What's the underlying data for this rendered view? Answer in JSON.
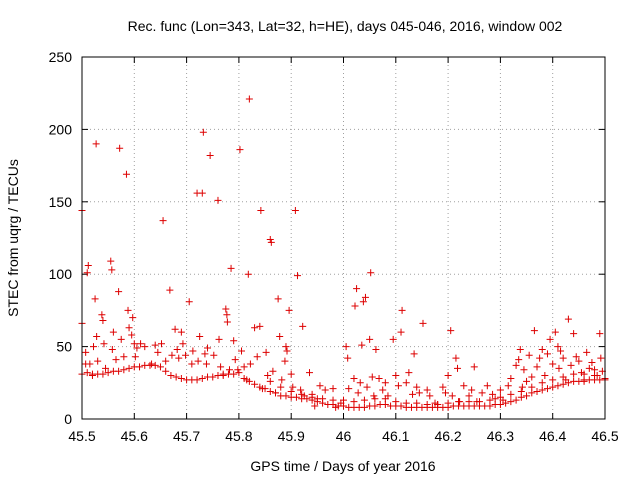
{
  "chart_data": {
    "type": "scatter",
    "title": "Rec. func (Lon=343, Lat=32, h=HE), days 045-046, 2016, window 002",
    "xlabel": "GPS time / Days of year 2016",
    "ylabel": "STEC from uqrg / TECUs",
    "xlim": [
      45.5,
      46.5
    ],
    "ylim": [
      0,
      250
    ],
    "x_ticks": [
      45.5,
      45.6,
      45.7,
      45.8,
      45.9,
      46,
      46.1,
      46.2,
      46.3,
      46.4,
      46.5
    ],
    "x_tick_labels": [
      "45.5",
      "45.6",
      "45.7",
      "45.8",
      "45.9",
      "46",
      "46.1",
      "46.2",
      "46.3",
      "46.4",
      "46.5"
    ],
    "y_ticks": [
      0,
      50,
      100,
      150,
      200,
      250
    ],
    "y_tick_labels": [
      "0",
      "50",
      "100",
      "150",
      "200",
      "250"
    ],
    "grid": true,
    "legend": "none",
    "marker": "plus",
    "color": "#dd0000",
    "points": [
      [
        45.5,
        144
      ],
      [
        45.5,
        66
      ],
      [
        45.507,
        46
      ],
      [
        45.507,
        38
      ],
      [
        45.51,
        101
      ],
      [
        45.512,
        106
      ],
      [
        45.515,
        38
      ],
      [
        45.52,
        31
      ],
      [
        45.522,
        50
      ],
      [
        45.525,
        83
      ],
      [
        45.527,
        190
      ],
      [
        45.528,
        57
      ],
      [
        45.53,
        40
      ],
      [
        45.538,
        72
      ],
      [
        45.54,
        68
      ],
      [
        45.542,
        52
      ],
      [
        45.545,
        35
      ],
      [
        45.555,
        109
      ],
      [
        45.557,
        103
      ],
      [
        45.558,
        48
      ],
      [
        45.56,
        60
      ],
      [
        45.565,
        41
      ],
      [
        45.57,
        88
      ],
      [
        45.572,
        187
      ],
      [
        45.575,
        55
      ],
      [
        45.58,
        43
      ],
      [
        45.585,
        169
      ],
      [
        45.588,
        75
      ],
      [
        45.59,
        63
      ],
      [
        45.595,
        58
      ],
      [
        45.597,
        70
      ],
      [
        45.6,
        52
      ],
      [
        45.602,
        43
      ],
      [
        45.605,
        49
      ],
      [
        45.612,
        52
      ],
      [
        45.62,
        50
      ],
      [
        45.633,
        38
      ],
      [
        45.64,
        51
      ],
      [
        45.645,
        46
      ],
      [
        45.652,
        52
      ],
      [
        45.655,
        137
      ],
      [
        45.66,
        40
      ],
      [
        45.668,
        89
      ],
      [
        45.672,
        44
      ],
      [
        45.678,
        62
      ],
      [
        45.682,
        48
      ],
      [
        45.685,
        42
      ],
      [
        45.69,
        60
      ],
      [
        45.693,
        52
      ],
      [
        45.698,
        44
      ],
      [
        45.705,
        81
      ],
      [
        45.71,
        38
      ],
      [
        45.712,
        47
      ],
      [
        45.72,
        156
      ],
      [
        45.722,
        40
      ],
      [
        45.725,
        57
      ],
      [
        45.73,
        156
      ],
      [
        45.732,
        198
      ],
      [
        45.735,
        45
      ],
      [
        45.738,
        38
      ],
      [
        45.74,
        49
      ],
      [
        45.745,
        182
      ],
      [
        45.752,
        44
      ],
      [
        45.76,
        151
      ],
      [
        45.762,
        55
      ],
      [
        45.765,
        36
      ],
      [
        45.77,
        31
      ],
      [
        45.775,
        76
      ],
      [
        45.777,
        72
      ],
      [
        45.778,
        67
      ],
      [
        45.782,
        34
      ],
      [
        45.785,
        104
      ],
      [
        45.79,
        54
      ],
      [
        45.793,
        41
      ],
      [
        45.798,
        34
      ],
      [
        45.802,
        186
      ],
      [
        45.805,
        47
      ],
      [
        45.81,
        36
      ],
      [
        45.815,
        27
      ],
      [
        45.818,
        100
      ],
      [
        45.82,
        221
      ],
      [
        45.822,
        38
      ],
      [
        45.83,
        63
      ],
      [
        45.835,
        43
      ],
      [
        45.84,
        64
      ],
      [
        45.842,
        144
      ],
      [
        45.845,
        21
      ],
      [
        45.852,
        46
      ],
      [
        45.855,
        30
      ],
      [
        45.86,
        124
      ],
      [
        45.862,
        122
      ],
      [
        45.865,
        33
      ],
      [
        45.87,
        18
      ],
      [
        45.875,
        83
      ],
      [
        45.878,
        57
      ],
      [
        45.882,
        27
      ],
      [
        45.888,
        40
      ],
      [
        45.89,
        50
      ],
      [
        45.892,
        47
      ],
      [
        45.896,
        75
      ],
      [
        45.9,
        31
      ],
      [
        45.903,
        22
      ],
      [
        45.908,
        144
      ],
      [
        45.912,
        99
      ],
      [
        45.918,
        20
      ],
      [
        45.922,
        64
      ],
      [
        45.925,
        16
      ],
      [
        45.935,
        32
      ],
      [
        45.94,
        17
      ],
      [
        45.945,
        9
      ],
      [
        45.95,
        14
      ],
      [
        45.955,
        23
      ],
      [
        45.965,
        20
      ],
      [
        45.98,
        21
      ],
      [
        45.985,
        8
      ],
      [
        45.995,
        11
      ],
      [
        46.005,
        50
      ],
      [
        46.008,
        42
      ],
      [
        46.01,
        21
      ],
      [
        46.02,
        28
      ],
      [
        46.022,
        78
      ],
      [
        46.025,
        90
      ],
      [
        46.028,
        18
      ],
      [
        46.032,
        25
      ],
      [
        46.035,
        51
      ],
      [
        46.038,
        81
      ],
      [
        46.042,
        84
      ],
      [
        46.045,
        22
      ],
      [
        46.05,
        55
      ],
      [
        46.052,
        101
      ],
      [
        46.055,
        29
      ],
      [
        46.058,
        16
      ],
      [
        46.062,
        48
      ],
      [
        46.068,
        28
      ],
      [
        46.075,
        20
      ],
      [
        46.08,
        25
      ],
      [
        46.085,
        16
      ],
      [
        46.095,
        55
      ],
      [
        46.1,
        30
      ],
      [
        46.105,
        23
      ],
      [
        46.11,
        60
      ],
      [
        46.112,
        75
      ],
      [
        46.12,
        25
      ],
      [
        46.125,
        32
      ],
      [
        46.132,
        17
      ],
      [
        46.135,
        45
      ],
      [
        46.14,
        22
      ],
      [
        46.145,
        18
      ],
      [
        46.152,
        66
      ],
      [
        46.16,
        20
      ],
      [
        46.165,
        16
      ],
      [
        46.175,
        11
      ],
      [
        46.18,
        10
      ],
      [
        46.19,
        22
      ],
      [
        46.195,
        18
      ],
      [
        46.2,
        30
      ],
      [
        46.205,
        61
      ],
      [
        46.208,
        16
      ],
      [
        46.215,
        42
      ],
      [
        46.218,
        35
      ],
      [
        46.222,
        12
      ],
      [
        46.23,
        23
      ],
      [
        46.24,
        16
      ],
      [
        46.245,
        20
      ],
      [
        46.25,
        36
      ],
      [
        46.255,
        12
      ],
      [
        46.265,
        18
      ],
      [
        46.275,
        23
      ],
      [
        46.285,
        17
      ],
      [
        46.29,
        14
      ],
      [
        46.3,
        20
      ],
      [
        46.305,
        13
      ],
      [
        46.315,
        23
      ],
      [
        46.32,
        28
      ],
      [
        46.33,
        37
      ],
      [
        46.335,
        41
      ],
      [
        46.338,
        48
      ],
      [
        46.342,
        22
      ],
      [
        46.345,
        34
      ],
      [
        46.35,
        26
      ],
      [
        46.355,
        44
      ],
      [
        46.36,
        29
      ],
      [
        46.365,
        61
      ],
      [
        46.37,
        36
      ],
      [
        46.375,
        42
      ],
      [
        46.38,
        48
      ],
      [
        46.385,
        30
      ],
      [
        46.39,
        45
      ],
      [
        46.395,
        55
      ],
      [
        46.4,
        38
      ],
      [
        46.405,
        60
      ],
      [
        46.41,
        50
      ],
      [
        46.412,
        35
      ],
      [
        46.415,
        47
      ],
      [
        46.42,
        42
      ],
      [
        46.425,
        27
      ],
      [
        46.43,
        69
      ],
      [
        46.435,
        37
      ],
      [
        46.44,
        59
      ],
      [
        46.445,
        43
      ],
      [
        46.45,
        40
      ],
      [
        46.455,
        32
      ],
      [
        46.46,
        26
      ],
      [
        46.465,
        46
      ],
      [
        46.47,
        35
      ],
      [
        46.475,
        39
      ],
      [
        46.48,
        34
      ],
      [
        46.485,
        30
      ],
      [
        46.49,
        59
      ],
      [
        46.492,
        42
      ],
      [
        46.495,
        33
      ],
      [
        46.5,
        28
      ],
      [
        45.5,
        31
      ],
      [
        45.51,
        32
      ],
      [
        45.52,
        30
      ],
      [
        45.53,
        31
      ],
      [
        45.54,
        31
      ],
      [
        45.55,
        32
      ],
      [
        45.56,
        33
      ],
      [
        45.57,
        33
      ],
      [
        45.58,
        34
      ],
      [
        45.59,
        35
      ],
      [
        45.6,
        36
      ],
      [
        45.61,
        36
      ],
      [
        45.62,
        37
      ],
      [
        45.63,
        37
      ],
      [
        45.64,
        37
      ],
      [
        45.65,
        36
      ],
      [
        45.66,
        33
      ],
      [
        45.67,
        30
      ],
      [
        45.68,
        29
      ],
      [
        45.69,
        28
      ],
      [
        45.7,
        27
      ],
      [
        45.71,
        27
      ],
      [
        45.72,
        27
      ],
      [
        45.73,
        28
      ],
      [
        45.74,
        29
      ],
      [
        45.75,
        29
      ],
      [
        45.76,
        30
      ],
      [
        45.77,
        30
      ],
      [
        45.78,
        31
      ],
      [
        45.79,
        31
      ],
      [
        45.8,
        32
      ],
      [
        45.81,
        28
      ],
      [
        45.82,
        26
      ],
      [
        45.83,
        24
      ],
      [
        45.84,
        22
      ],
      [
        45.85,
        21
      ],
      [
        45.86,
        19
      ],
      [
        45.87,
        18
      ],
      [
        45.88,
        16
      ],
      [
        45.89,
        16
      ],
      [
        45.9,
        15
      ],
      [
        45.91,
        15
      ],
      [
        45.92,
        14
      ],
      [
        45.93,
        14
      ],
      [
        45.94,
        13
      ],
      [
        45.95,
        12
      ],
      [
        45.96,
        11
      ],
      [
        45.97,
        10
      ],
      [
        45.98,
        10
      ],
      [
        45.99,
        9
      ],
      [
        46.0,
        9
      ],
      [
        46.01,
        8
      ],
      [
        46.02,
        8
      ],
      [
        46.03,
        8
      ],
      [
        46.04,
        8
      ],
      [
        46.05,
        9
      ],
      [
        46.06,
        9
      ],
      [
        46.07,
        10
      ],
      [
        46.08,
        10
      ],
      [
        46.09,
        9
      ],
      [
        46.1,
        9
      ],
      [
        46.11,
        9
      ],
      [
        46.12,
        8
      ],
      [
        46.13,
        8
      ],
      [
        46.14,
        8
      ],
      [
        46.15,
        8
      ],
      [
        46.16,
        8
      ],
      [
        46.17,
        8
      ],
      [
        46.18,
        8
      ],
      [
        46.19,
        8
      ],
      [
        46.2,
        8
      ],
      [
        46.21,
        9
      ],
      [
        46.22,
        9
      ],
      [
        46.23,
        9
      ],
      [
        46.24,
        9
      ],
      [
        46.25,
        9
      ],
      [
        46.26,
        9
      ],
      [
        46.27,
        9
      ],
      [
        46.28,
        9
      ],
      [
        46.29,
        10
      ],
      [
        46.3,
        10
      ],
      [
        46.31,
        11
      ],
      [
        46.32,
        12
      ],
      [
        46.33,
        13
      ],
      [
        46.34,
        15
      ],
      [
        46.35,
        16
      ],
      [
        46.36,
        18
      ],
      [
        46.37,
        19
      ],
      [
        46.38,
        20
      ],
      [
        46.39,
        21
      ],
      [
        46.4,
        22
      ],
      [
        46.41,
        23
      ],
      [
        46.42,
        24
      ],
      [
        46.43,
        25
      ],
      [
        46.44,
        26
      ],
      [
        46.45,
        26
      ],
      [
        46.46,
        27
      ],
      [
        46.47,
        27
      ],
      [
        46.48,
        27
      ],
      [
        46.49,
        27
      ],
      [
        46.5,
        27
      ],
      [
        45.86,
        26
      ],
      [
        45.88,
        22
      ],
      [
        45.9,
        19
      ],
      [
        45.92,
        17
      ],
      [
        45.94,
        15
      ],
      [
        45.96,
        14
      ],
      [
        45.98,
        13
      ],
      [
        46.0,
        13
      ],
      [
        46.02,
        12
      ],
      [
        46.04,
        13
      ],
      [
        46.06,
        14
      ],
      [
        46.08,
        14
      ],
      [
        46.1,
        12
      ],
      [
        46.12,
        11
      ],
      [
        46.14,
        11
      ],
      [
        46.16,
        10
      ],
      [
        46.18,
        10
      ],
      [
        46.2,
        11
      ],
      [
        46.22,
        12
      ],
      [
        46.24,
        12
      ],
      [
        46.26,
        12
      ],
      [
        46.28,
        13
      ],
      [
        46.3,
        15
      ],
      [
        46.32,
        17
      ],
      [
        46.34,
        19
      ],
      [
        46.36,
        22
      ],
      [
        46.38,
        25
      ],
      [
        46.4,
        27
      ],
      [
        46.42,
        29
      ],
      [
        46.44,
        31
      ],
      [
        46.46,
        31
      ],
      [
        46.48,
        30
      ]
    ]
  }
}
